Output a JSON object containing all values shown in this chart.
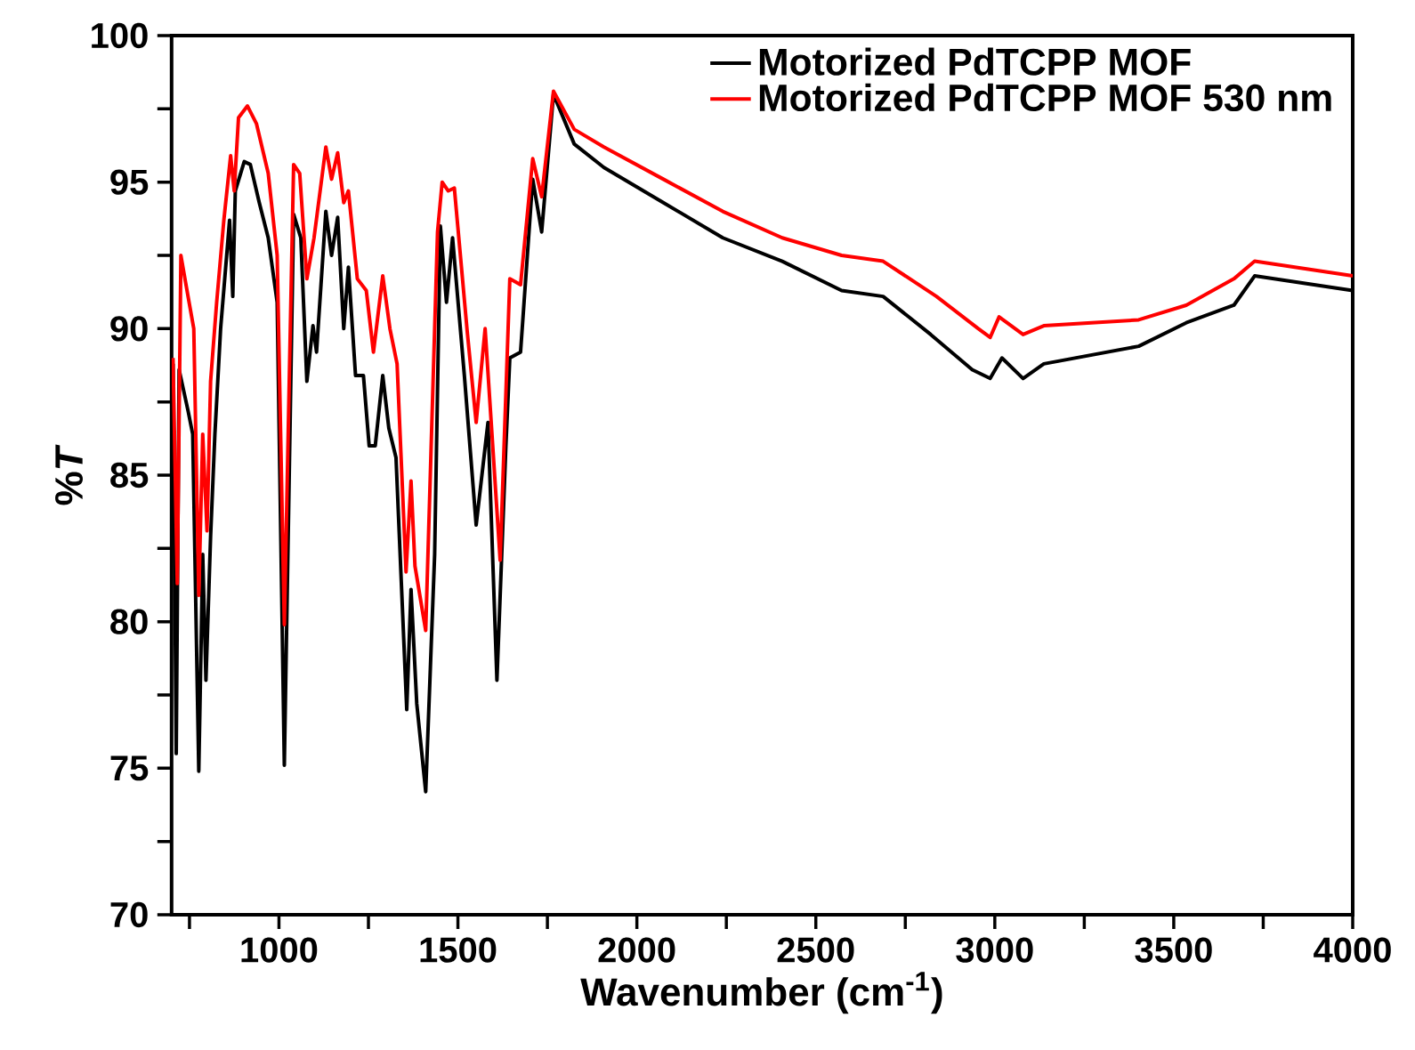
{
  "chart_data": {
    "type": "line",
    "xlabel": "Wavenumber (cm$^{-1}$)",
    "ylabel": "%*T*",
    "xlim": [
      700,
      4000
    ],
    "ylim": [
      70,
      100
    ],
    "xticks": [
      {
        "value": 750,
        "label": null
      },
      1000,
      {
        "value": 1250,
        "label": null
      },
      1500,
      {
        "value": 1750,
        "label": null
      },
      2000,
      {
        "value": 2250,
        "label": null
      },
      2500,
      {
        "value": 2750,
        "label": null
      },
      3000,
      {
        "value": 3250,
        "label": null
      },
      3500,
      {
        "value": 3750,
        "label": null
      },
      4000
    ],
    "yticks": [
      70,
      {
        "value": 72.5,
        "label": null
      },
      75,
      {
        "value": 77.5,
        "label": null
      },
      80,
      {
        "value": 82.5,
        "label": null
      },
      85,
      {
        "value": 87.5,
        "label": null
      },
      90,
      {
        "value": 92.5,
        "label": null
      },
      95,
      {
        "value": 97.5,
        "label": null
      },
      100
    ],
    "legend": "top right",
    "series": [
      {
        "name": "Motorized PdTCPP MOF",
        "color": "#000000",
        "x": [
          704,
          713,
          721,
          746,
          759,
          776,
          787,
          796,
          809,
          821,
          837,
          862,
          871,
          878,
          903,
          920,
          945,
          970,
          995,
          1015,
          1041,
          1061,
          1078,
          1095,
          1105,
          1131,
          1147,
          1164,
          1181,
          1194,
          1214,
          1236,
          1252,
          1269,
          1290,
          1307,
          1327,
          1357,
          1369,
          1385,
          1410,
          1435,
          1451,
          1468,
          1485,
          1518,
          1551,
          1584,
          1609,
          1634,
          1645,
          1675,
          1709,
          1734,
          1767,
          1825,
          1908,
          2074,
          2240,
          2406,
          2572,
          2688,
          2821,
          2937,
          2987,
          3020,
          3079,
          3137,
          3402,
          3535,
          3668,
          3726,
          4000
        ],
        "values": [
          88.8,
          75.5,
          88.6,
          87.2,
          86.4,
          74.9,
          82.3,
          78.0,
          82.9,
          86.4,
          90.0,
          93.7,
          91.1,
          94.7,
          95.7,
          95.6,
          94.3,
          93.1,
          90.9,
          75.1,
          93.9,
          93.1,
          88.2,
          90.1,
          89.2,
          94.0,
          92.5,
          93.8,
          90.0,
          92.1,
          88.4,
          88.4,
          86.0,
          86.0,
          88.4,
          86.6,
          85.6,
          77.0,
          81.1,
          77.2,
          74.2,
          82.3,
          93.5,
          90.9,
          93.1,
          88.4,
          83.3,
          86.8,
          78.0,
          86.0,
          89.0,
          89.2,
          95.1,
          93.3,
          98.0,
          96.3,
          95.5,
          94.3,
          93.1,
          92.3,
          91.3,
          91.1,
          89.8,
          88.6,
          88.3,
          89.0,
          88.3,
          88.8,
          89.4,
          90.2,
          90.8,
          91.8,
          91.3
        ]
      },
      {
        "name": "Motorized PdTCPP MOF 530 nm",
        "color": "#ff0000",
        "x": [
          704,
          716,
          726,
          746,
          762,
          776,
          787,
          799,
          809,
          826,
          846,
          865,
          875,
          887,
          912,
          937,
          970,
          995,
          1015,
          1041,
          1058,
          1078,
          1098,
          1131,
          1147,
          1164,
          1181,
          1194,
          1219,
          1244,
          1264,
          1290,
          1310,
          1330,
          1355,
          1369,
          1380,
          1410,
          1443,
          1456,
          1473,
          1490,
          1526,
          1551,
          1576,
          1618,
          1645,
          1675,
          1709,
          1734,
          1767,
          1825,
          1908,
          2074,
          2240,
          2406,
          2572,
          2688,
          2837,
          2954,
          2987,
          3012,
          3079,
          3137,
          3402,
          3535,
          3668,
          3726,
          4000
        ],
        "values": [
          89.0,
          81.3,
          92.5,
          91.1,
          90.0,
          80.9,
          86.4,
          83.1,
          88.2,
          90.9,
          93.7,
          95.9,
          94.7,
          97.2,
          97.6,
          97.0,
          95.3,
          92.5,
          79.9,
          95.6,
          95.3,
          91.7,
          93.1,
          96.2,
          95.1,
          96.0,
          94.3,
          94.7,
          91.7,
          91.3,
          89.2,
          91.8,
          90.0,
          88.8,
          81.7,
          84.8,
          81.9,
          79.7,
          93.3,
          95.0,
          94.7,
          94.8,
          89.9,
          86.8,
          90.0,
          82.1,
          91.7,
          91.5,
          95.8,
          94.5,
          98.1,
          96.8,
          96.2,
          95.1,
          94.0,
          93.1,
          92.5,
          92.3,
          91.1,
          90.0,
          89.7,
          90.4,
          89.8,
          90.1,
          90.3,
          90.8,
          91.7,
          92.3,
          91.8
        ]
      }
    ]
  }
}
